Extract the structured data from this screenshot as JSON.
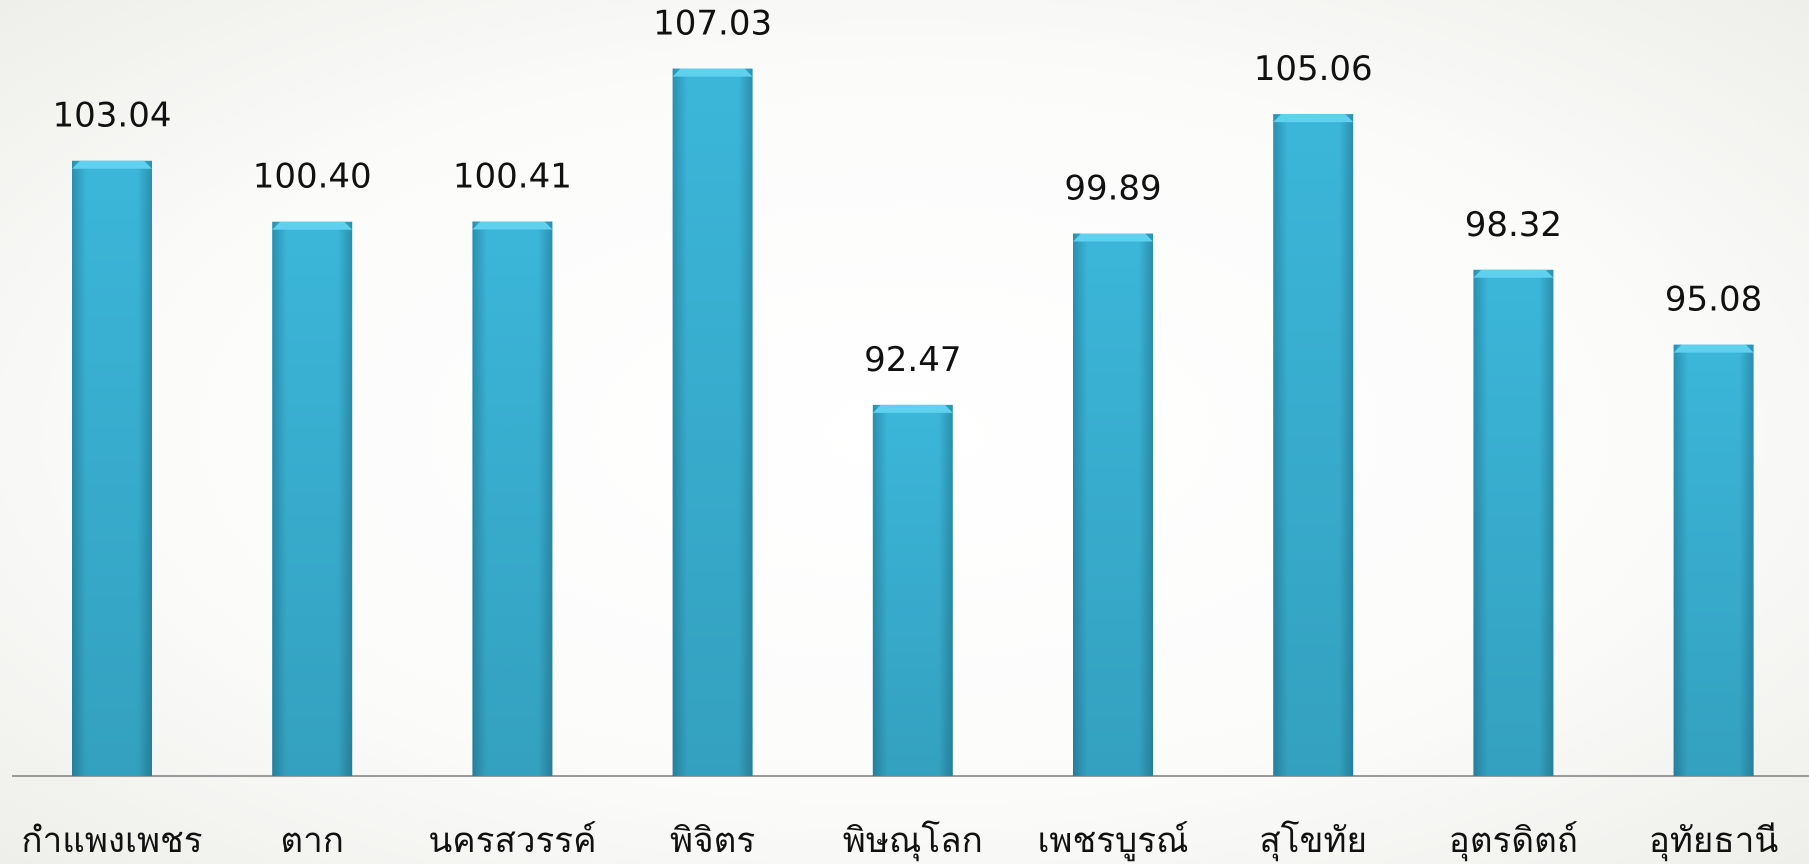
{
  "chart_data": {
    "type": "bar",
    "categories": [
      "กำแพงเพชร",
      "ตาก",
      "นครสวรรค์",
      "พิจิตร",
      "พิษณุโลก",
      "เพชรบูรณ์",
      "สุโขทัย",
      "อุตรดิตถ์",
      "อุทัยธานี"
    ],
    "values": [
      103.04,
      100.4,
      100.41,
      107.03,
      92.47,
      99.89,
      105.06,
      98.32,
      95.08
    ],
    "value_labels": [
      "103.04",
      "100.40",
      "100.41",
      "107.03",
      "92.47",
      "99.89",
      "105.06",
      "98.32",
      "95.08"
    ],
    "title": "",
    "xlabel": "",
    "ylabel": "",
    "ylim": [
      76.4,
      110
    ],
    "grid": false,
    "legend": "none",
    "bar_color": "#3bb6d9",
    "bar_color_dark": "#2a8fae",
    "axis_color": "#9a9a9a"
  }
}
